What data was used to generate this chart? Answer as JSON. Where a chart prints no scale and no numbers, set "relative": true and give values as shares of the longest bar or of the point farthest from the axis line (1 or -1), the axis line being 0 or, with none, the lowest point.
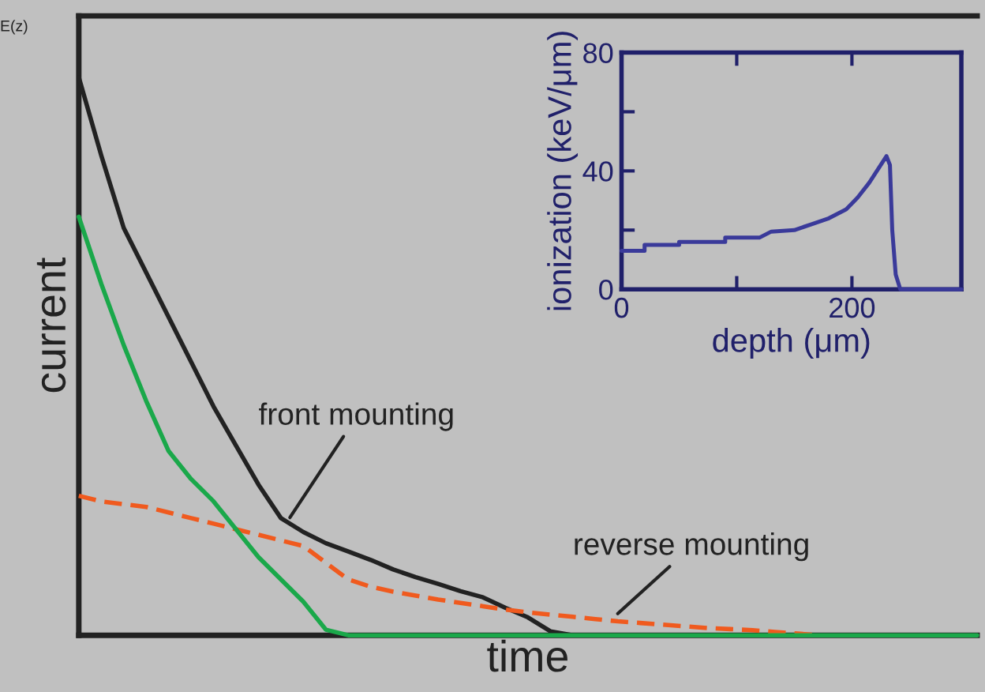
{
  "chart_data": [
    {
      "type": "line",
      "relative": true,
      "xlabel": "time",
      "ylabel": "current",
      "grid": false,
      "legend": false,
      "categories": [
        null,
        null,
        null,
        null,
        null,
        null,
        null,
        null,
        null,
        null,
        null,
        null,
        null,
        null,
        null,
        null,
        null,
        null,
        null,
        null,
        null,
        null,
        null,
        null,
        null,
        null,
        null,
        null,
        null,
        null,
        null,
        null,
        null,
        null,
        null,
        null,
        null,
        null,
        null,
        null,
        null
      ],
      "series": [
        {
          "color": "#222222",
          "line_style": "solid",
          "values": [
            1.0,
            0.86,
            0.73,
            0.65,
            0.57,
            0.49,
            0.41,
            0.34,
            0.27,
            0.21,
            0.185,
            0.165,
            0.15,
            0.135,
            0.118,
            0.104,
            0.092,
            0.079,
            0.068,
            0.049,
            0.032,
            0.007,
            0,
            null,
            null,
            null,
            null,
            null,
            null,
            null,
            null,
            null,
            null,
            null,
            null,
            null,
            null,
            null,
            null,
            null,
            null
          ]
        },
        {
          "color": "#f05a1e",
          "line_style": "dashed",
          "values": [
            0.25,
            0.24,
            0.235,
            0.23,
            0.22,
            0.21,
            0.2,
            0.19,
            0.18,
            0.17,
            0.16,
            0.13,
            0.1,
            0.087,
            0.078,
            0.071,
            0.064,
            0.058,
            0.052,
            0.046,
            0.041,
            0.037,
            0.033,
            0.029,
            0.025,
            0.022,
            0.019,
            0.016,
            0.013,
            0.011,
            0.009,
            0.006,
            0.003,
            0,
            null,
            null,
            null,
            null,
            null,
            null,
            null
          ]
        },
        {
          "color": "#1aa84a",
          "line_style": "solid",
          "values": [
            0.75,
            0.63,
            0.52,
            0.42,
            0.33,
            0.28,
            0.24,
            0.19,
            0.14,
            0.1,
            0.06,
            0.01,
            0,
            0,
            0,
            0,
            0,
            0,
            0,
            0,
            0,
            0,
            0,
            0,
            0,
            0,
            0,
            0,
            0,
            0,
            0,
            0,
            0,
            0,
            0,
            0,
            0,
            0,
            0,
            0,
            0
          ]
        }
      ],
      "annotations": [
        "front mounting",
        "reverse mounting",
        "E(z)"
      ]
    },
    {
      "type": "line",
      "xlabel": "depth (μm)",
      "ylabel": "ionization (keV/μm)",
      "grid": false,
      "legend": false,
      "xlim": [
        0,
        295
      ],
      "xticks": [
        0,
        {
          "value": 100,
          "label": null
        },
        200
      ],
      "ylim": [
        0,
        80
      ],
      "yticks": [
        0,
        {
          "value": 20,
          "label": null
        },
        40,
        {
          "value": 60,
          "label": null
        },
        80
      ],
      "series": [
        {
          "color": "#3a3a9a",
          "line_style": "solid",
          "x": [
            0,
            20,
            20,
            50,
            50,
            90,
            90,
            120,
            130,
            150,
            165,
            180,
            195,
            205,
            215,
            225,
            230,
            233,
            235,
            238,
            242,
            295
          ],
          "values": [
            13,
            13,
            15,
            15,
            16,
            16,
            17.5,
            17.5,
            19.5,
            20,
            22,
            24,
            27,
            31,
            36,
            42,
            45,
            42,
            20,
            5,
            0,
            0
          ]
        }
      ]
    }
  ]
}
